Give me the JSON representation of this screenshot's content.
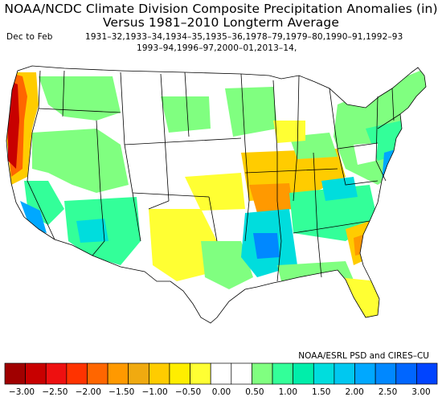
{
  "header": {
    "title_line1": "NOAA/NCDC Climate Division Composite Precipitation Anomalies (in)",
    "title_line2": "Versus 1981–2010 Longterm Average",
    "season": "Dec to Feb",
    "years_line1": "1931–32,1933–34,1934–35,1935–36,1978–79,1979–80,1990–91,1992–93",
    "years_line2": "1993–94,1996–97,2000–01,2013–14,"
  },
  "credit": "NOAA/ESRL PSD and CIRES–CU",
  "legend": {
    "colors": [
      "#a00000",
      "#c80000",
      "#ee1010",
      "#ff3300",
      "#ff6600",
      "#ff9900",
      "#f0aa10",
      "#ffcc00",
      "#ffee00",
      "#ffff33",
      "#ffffff",
      "#ffffff",
      "#80ff80",
      "#33ff99",
      "#00eeaa",
      "#00dddd",
      "#00c8f0",
      "#00a8ff",
      "#0088ff",
      "#0066ff",
      "#0044ff"
    ],
    "labels": [
      "−3.00",
      "−2.50",
      "−2.00",
      "−1.50",
      "−1.00",
      "−0.50",
      "0.00",
      "0.50",
      "1.00",
      "1.50",
      "2.00",
      "2.50",
      "3.00"
    ]
  },
  "map": {
    "regions": [
      {
        "name": "pacific-northwest-coast",
        "level": "-3.0"
      },
      {
        "name": "northern-california",
        "level": "-2.5"
      },
      {
        "name": "great-basin",
        "level": "0.5"
      },
      {
        "name": "northern-plains",
        "level": "0.5"
      },
      {
        "name": "ohio-valley",
        "level": "-1.0"
      },
      {
        "name": "tennessee-valley",
        "level": "-1.5"
      },
      {
        "name": "lower-mississippi",
        "level": "2.0"
      },
      {
        "name": "southeast-coast",
        "level": "-1.0"
      },
      {
        "name": "gulf-coast",
        "level": "1.0"
      },
      {
        "name": "mid-atlantic",
        "level": "1.5"
      },
      {
        "name": "southern-california",
        "level": "2.0"
      },
      {
        "name": "southwest",
        "level": "1.0"
      },
      {
        "name": "southern-plains",
        "level": "-0.5"
      },
      {
        "name": "northeast",
        "level": "0.5"
      }
    ]
  }
}
